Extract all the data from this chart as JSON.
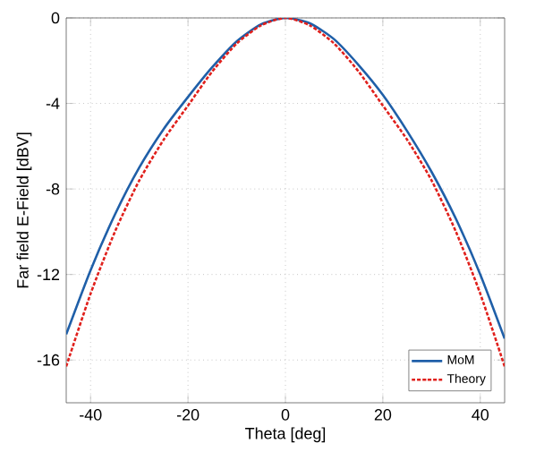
{
  "chart_data": {
    "type": "line",
    "xlabel": "Theta [deg]",
    "ylabel": "Far field E-Field [dBV]",
    "x": [
      -45,
      -40,
      -35,
      -30,
      -25,
      -20,
      -15,
      -10,
      -5,
      0,
      5,
      10,
      15,
      20,
      25,
      30,
      35,
      40,
      45
    ],
    "series": [
      {
        "name": "MoM",
        "color": "#1f5fa8",
        "line_style": "solid",
        "values": [
          -14.8,
          -11.8,
          -9.2,
          -7.0,
          -5.2,
          -3.7,
          -2.3,
          -1.1,
          -0.3,
          0,
          -0.25,
          -1.0,
          -2.2,
          -3.6,
          -5.3,
          -7.2,
          -9.4,
          -12.0,
          -15.0
        ]
      },
      {
        "name": "Theory",
        "color": "#e0201c",
        "line_style": "dashed",
        "values": [
          -16.3,
          -12.9,
          -10.0,
          -7.6,
          -5.7,
          -4.1,
          -2.5,
          -1.2,
          -0.35,
          0,
          -0.35,
          -1.2,
          -2.5,
          -4.1,
          -5.7,
          -7.6,
          -10.0,
          -12.9,
          -16.3
        ]
      }
    ],
    "xlim": [
      -45,
      45
    ],
    "ylim": [
      -18,
      0
    ],
    "xticks": [
      -40,
      -20,
      0,
      20,
      40
    ],
    "yticks": [
      -16,
      -12,
      -8,
      -4,
      0
    ],
    "grid": true,
    "legend": "bottom right",
    "marker": "none"
  }
}
